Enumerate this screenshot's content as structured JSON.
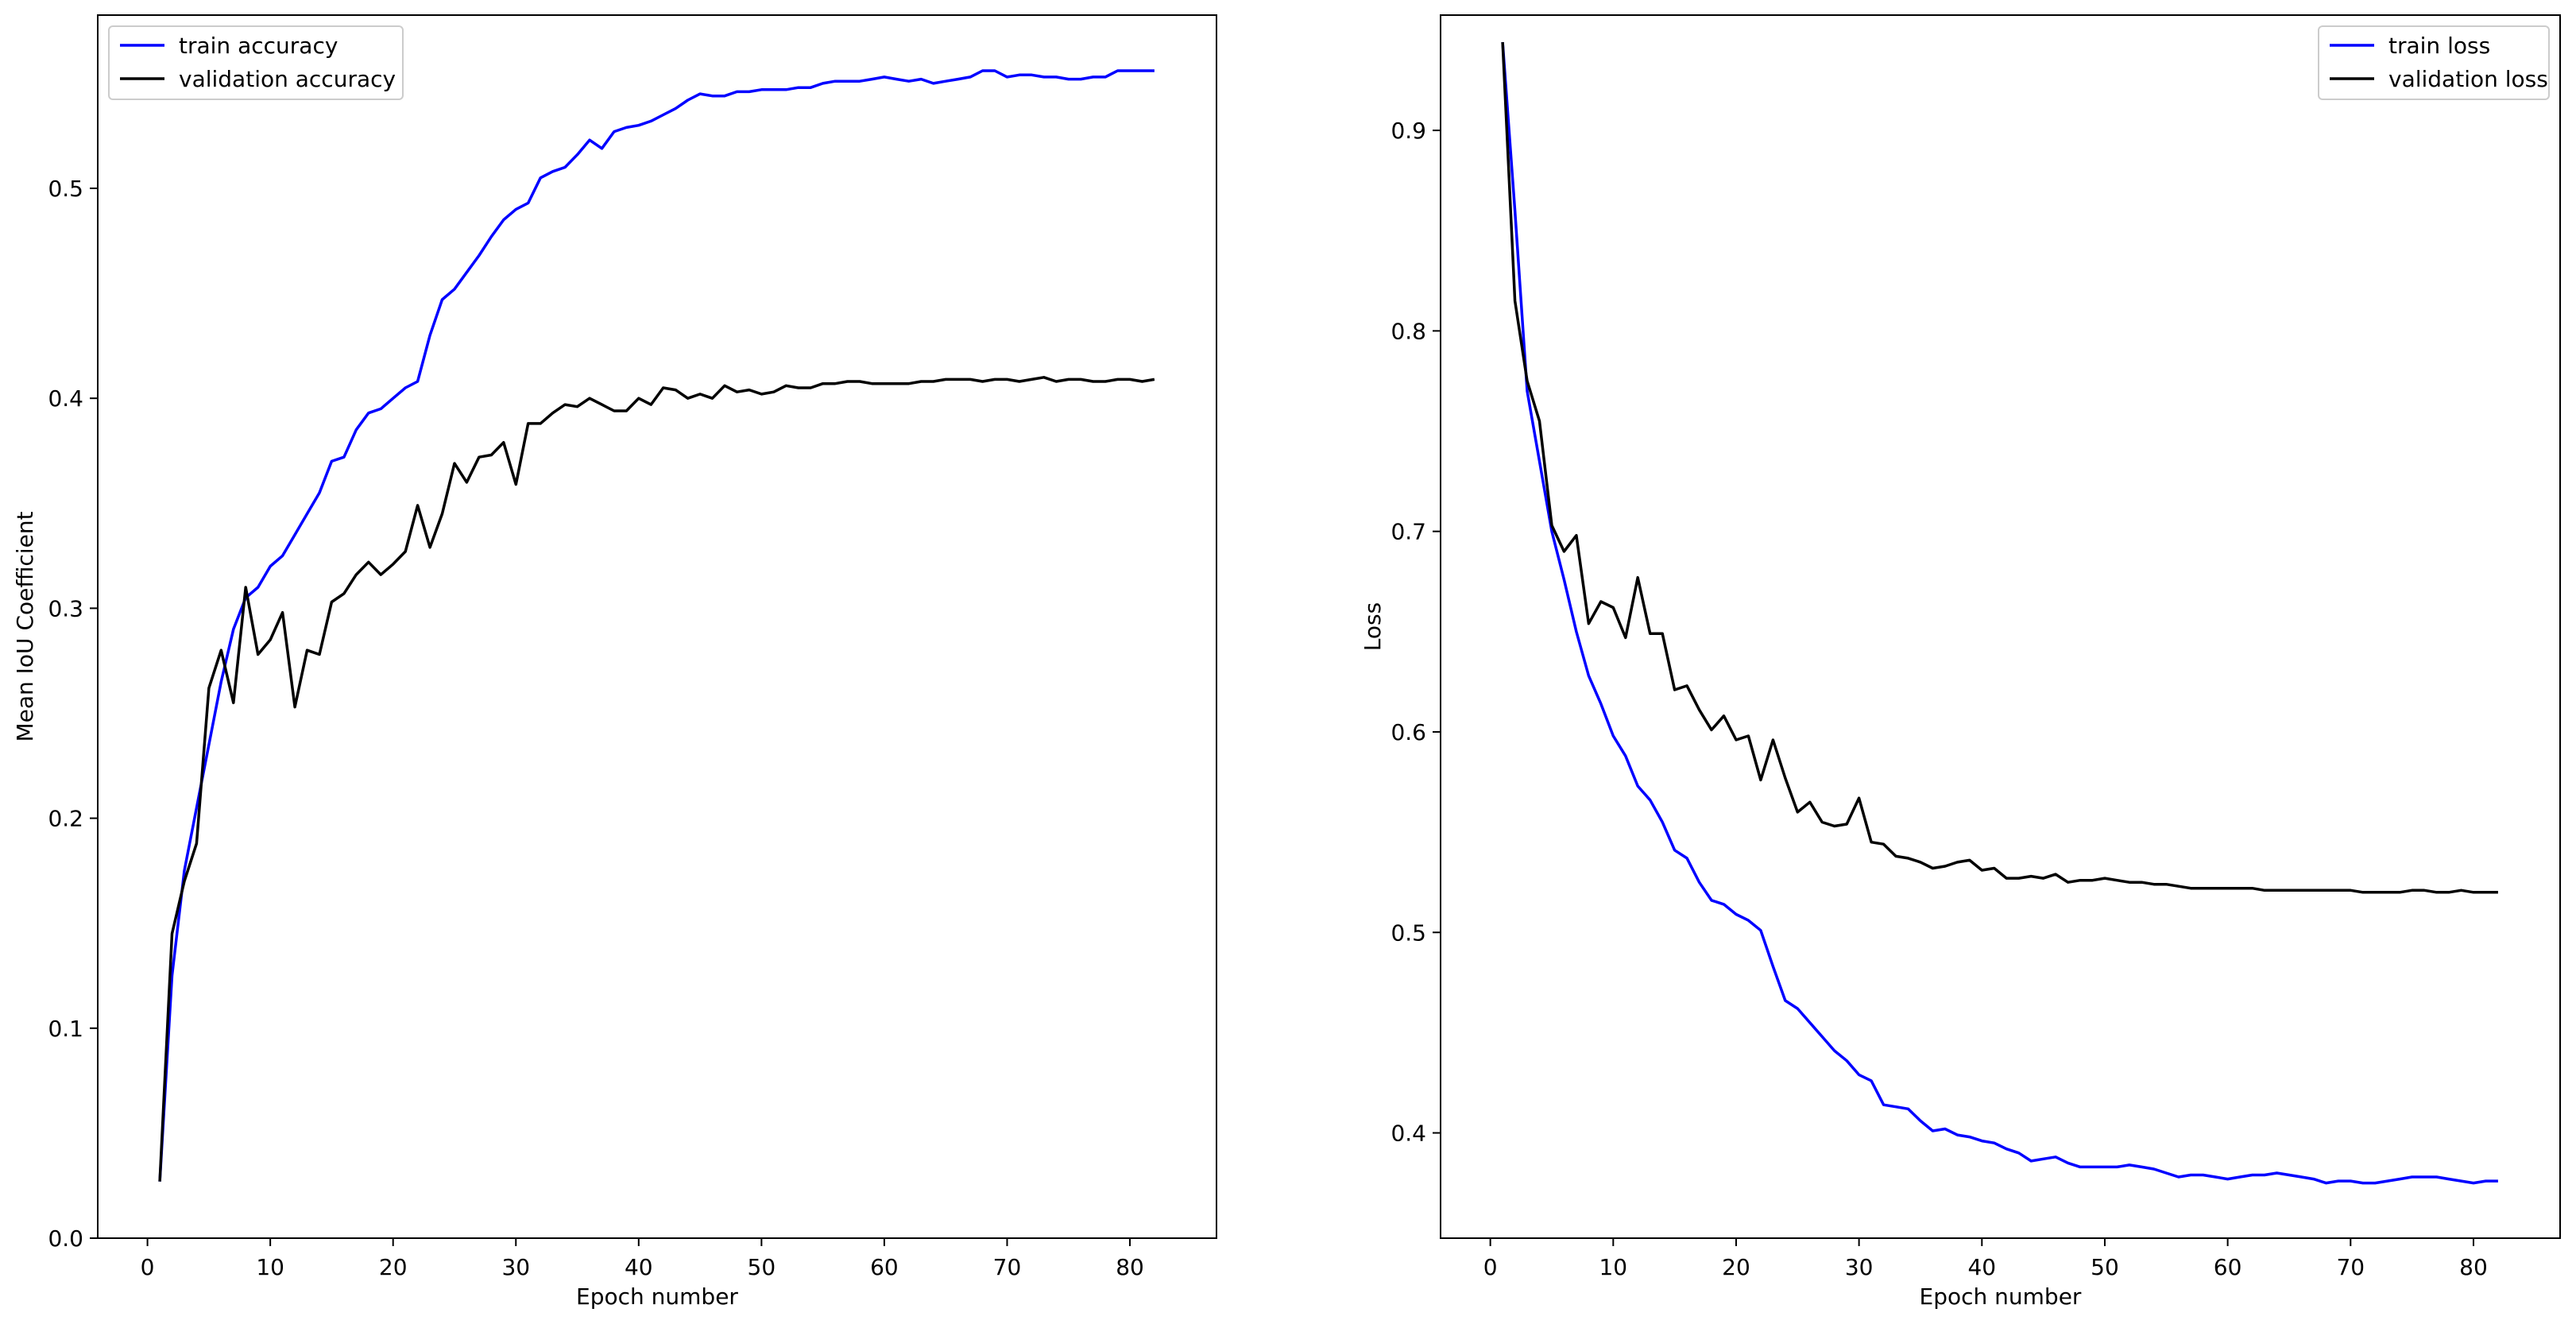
{
  "chart_data": [
    {
      "type": "line",
      "xlabel": "Epoch number",
      "ylabel": "Mean IoU Coefficient",
      "xlim": [
        -4.05,
        87.05
      ],
      "ylim": [
        0.0,
        0.5825
      ],
      "xticks": [
        0,
        10,
        20,
        30,
        40,
        50,
        60,
        70,
        80
      ],
      "yticks": [
        0.0,
        0.1,
        0.2,
        0.3,
        0.4,
        0.5
      ],
      "grid": false,
      "legend_position": "top-left",
      "series": [
        {
          "name": "train accuracy",
          "color": "#0000ff",
          "x": [
            1,
            2,
            3,
            4,
            5,
            6,
            7,
            8,
            9,
            10,
            11,
            12,
            13,
            14,
            15,
            16,
            17,
            18,
            19,
            20,
            21,
            22,
            23,
            24,
            25,
            26,
            27,
            28,
            29,
            30,
            31,
            32,
            33,
            34,
            35,
            36,
            37,
            38,
            39,
            40,
            41,
            42,
            43,
            44,
            45,
            46,
            47,
            48,
            49,
            50,
            51,
            52,
            53,
            54,
            55,
            56,
            57,
            58,
            59,
            60,
            61,
            62,
            63,
            64,
            65,
            66,
            67,
            68,
            69,
            70,
            71,
            72,
            73,
            74,
            75,
            76,
            77,
            78,
            79,
            80,
            81,
            82
          ],
          "y": [
            0.027,
            0.125,
            0.175,
            0.205,
            0.235,
            0.265,
            0.29,
            0.305,
            0.31,
            0.32,
            0.325,
            0.335,
            0.345,
            0.355,
            0.37,
            0.372,
            0.385,
            0.393,
            0.395,
            0.4,
            0.405,
            0.408,
            0.43,
            0.447,
            0.452,
            0.46,
            0.468,
            0.477,
            0.485,
            0.49,
            0.493,
            0.505,
            0.508,
            0.51,
            0.516,
            0.523,
            0.519,
            0.527,
            0.529,
            0.53,
            0.532,
            0.535,
            0.538,
            0.542,
            0.545,
            0.544,
            0.544,
            0.546,
            0.546,
            0.547,
            0.547,
            0.547,
            0.548,
            0.548,
            0.55,
            0.551,
            0.551,
            0.551,
            0.552,
            0.553,
            0.552,
            0.551,
            0.552,
            0.55,
            0.551,
            0.552,
            0.553,
            0.556,
            0.556,
            0.553,
            0.554,
            0.554,
            0.553,
            0.553,
            0.552,
            0.552,
            0.553,
            0.553,
            0.556,
            0.556,
            0.556,
            0.556
          ]
        },
        {
          "name": "validation accuracy",
          "color": "#000000",
          "x": [
            1,
            2,
            3,
            4,
            5,
            6,
            7,
            8,
            9,
            10,
            11,
            12,
            13,
            14,
            15,
            16,
            17,
            18,
            19,
            20,
            21,
            22,
            23,
            24,
            25,
            26,
            27,
            28,
            29,
            30,
            31,
            32,
            33,
            34,
            35,
            36,
            37,
            38,
            39,
            40,
            41,
            42,
            43,
            44,
            45,
            46,
            47,
            48,
            49,
            50,
            51,
            52,
            53,
            54,
            55,
            56,
            57,
            58,
            59,
            60,
            61,
            62,
            63,
            64,
            65,
            66,
            67,
            68,
            69,
            70,
            71,
            72,
            73,
            74,
            75,
            76,
            77,
            78,
            79,
            80,
            81,
            82
          ],
          "y": [
            0.027,
            0.145,
            0.17,
            0.188,
            0.262,
            0.28,
            0.255,
            0.31,
            0.278,
            0.285,
            0.298,
            0.253,
            0.28,
            0.278,
            0.303,
            0.307,
            0.316,
            0.322,
            0.316,
            0.321,
            0.327,
            0.349,
            0.329,
            0.345,
            0.369,
            0.36,
            0.372,
            0.373,
            0.379,
            0.359,
            0.388,
            0.388,
            0.393,
            0.397,
            0.396,
            0.4,
            0.397,
            0.394,
            0.394,
            0.4,
            0.397,
            0.405,
            0.404,
            0.4,
            0.402,
            0.4,
            0.406,
            0.403,
            0.404,
            0.402,
            0.403,
            0.406,
            0.405,
            0.405,
            0.407,
            0.407,
            0.408,
            0.408,
            0.407,
            0.407,
            0.407,
            0.407,
            0.408,
            0.408,
            0.409,
            0.409,
            0.409,
            0.408,
            0.409,
            0.409,
            0.408,
            0.409,
            0.41,
            0.408,
            0.409,
            0.409,
            0.408,
            0.408,
            0.409,
            0.409,
            0.408,
            0.409
          ]
        }
      ]
    },
    {
      "type": "line",
      "xlabel": "Epoch number",
      "ylabel": "Loss",
      "xlim": [
        -4.05,
        87.05
      ],
      "ylim": [
        0.3475,
        0.9575
      ],
      "xticks": [
        0,
        10,
        20,
        30,
        40,
        50,
        60,
        70,
        80
      ],
      "yticks": [
        0.4,
        0.5,
        0.6,
        0.7,
        0.8,
        0.9
      ],
      "grid": false,
      "legend_position": "top-right",
      "series": [
        {
          "name": "train loss",
          "color": "#0000ff",
          "x": [
            1,
            2,
            3,
            4,
            5,
            6,
            7,
            8,
            9,
            10,
            11,
            12,
            13,
            14,
            15,
            16,
            17,
            18,
            19,
            20,
            21,
            22,
            23,
            24,
            25,
            26,
            27,
            28,
            29,
            30,
            31,
            32,
            33,
            34,
            35,
            36,
            37,
            38,
            39,
            40,
            41,
            42,
            43,
            44,
            45,
            46,
            47,
            48,
            49,
            50,
            51,
            52,
            53,
            54,
            55,
            56,
            57,
            58,
            59,
            60,
            61,
            62,
            63,
            64,
            65,
            66,
            67,
            68,
            69,
            70,
            71,
            72,
            73,
            74,
            75,
            76,
            77,
            78,
            79,
            80,
            81,
            82
          ],
          "y": [
            0.944,
            0.86,
            0.77,
            0.735,
            0.7,
            0.676,
            0.65,
            0.628,
            0.614,
            0.598,
            0.588,
            0.573,
            0.566,
            0.555,
            0.541,
            0.537,
            0.525,
            0.516,
            0.514,
            0.509,
            0.506,
            0.501,
            0.483,
            0.466,
            0.462,
            0.455,
            0.448,
            0.441,
            0.436,
            0.429,
            0.426,
            0.414,
            0.413,
            0.412,
            0.406,
            0.401,
            0.402,
            0.399,
            0.398,
            0.396,
            0.395,
            0.392,
            0.39,
            0.386,
            0.387,
            0.388,
            0.385,
            0.383,
            0.383,
            0.383,
            0.383,
            0.384,
            0.383,
            0.382,
            0.38,
            0.378,
            0.379,
            0.379,
            0.378,
            0.377,
            0.378,
            0.379,
            0.379,
            0.38,
            0.379,
            0.378,
            0.377,
            0.375,
            0.376,
            0.376,
            0.375,
            0.375,
            0.376,
            0.377,
            0.378,
            0.378,
            0.378,
            0.377,
            0.376,
            0.375,
            0.376,
            0.376
          ]
        },
        {
          "name": "validation loss",
          "color": "#000000",
          "x": [
            1,
            2,
            3,
            4,
            5,
            6,
            7,
            8,
            9,
            10,
            11,
            12,
            13,
            14,
            15,
            16,
            17,
            18,
            19,
            20,
            21,
            22,
            23,
            24,
            25,
            26,
            27,
            28,
            29,
            30,
            31,
            32,
            33,
            34,
            35,
            36,
            37,
            38,
            39,
            40,
            41,
            42,
            43,
            44,
            45,
            46,
            47,
            48,
            49,
            50,
            51,
            52,
            53,
            54,
            55,
            56,
            57,
            58,
            59,
            60,
            61,
            62,
            63,
            64,
            65,
            66,
            67,
            68,
            69,
            70,
            71,
            72,
            73,
            74,
            75,
            76,
            77,
            78,
            79,
            80,
            81,
            82
          ],
          "y": [
            0.944,
            0.815,
            0.775,
            0.755,
            0.703,
            0.69,
            0.698,
            0.654,
            0.665,
            0.662,
            0.647,
            0.677,
            0.649,
            0.649,
            0.621,
            0.623,
            0.611,
            0.601,
            0.608,
            0.596,
            0.598,
            0.576,
            0.596,
            0.577,
            0.56,
            0.565,
            0.555,
            0.553,
            0.554,
            0.567,
            0.545,
            0.544,
            0.538,
            0.537,
            0.535,
            0.532,
            0.533,
            0.535,
            0.536,
            0.531,
            0.532,
            0.527,
            0.527,
            0.528,
            0.527,
            0.529,
            0.525,
            0.526,
            0.526,
            0.527,
            0.526,
            0.525,
            0.525,
            0.524,
            0.524,
            0.523,
            0.522,
            0.522,
            0.522,
            0.522,
            0.522,
            0.522,
            0.521,
            0.521,
            0.521,
            0.521,
            0.521,
            0.521,
            0.521,
            0.521,
            0.52,
            0.52,
            0.52,
            0.52,
            0.521,
            0.521,
            0.52,
            0.52,
            0.521,
            0.52,
            0.52,
            0.52
          ]
        }
      ]
    }
  ]
}
